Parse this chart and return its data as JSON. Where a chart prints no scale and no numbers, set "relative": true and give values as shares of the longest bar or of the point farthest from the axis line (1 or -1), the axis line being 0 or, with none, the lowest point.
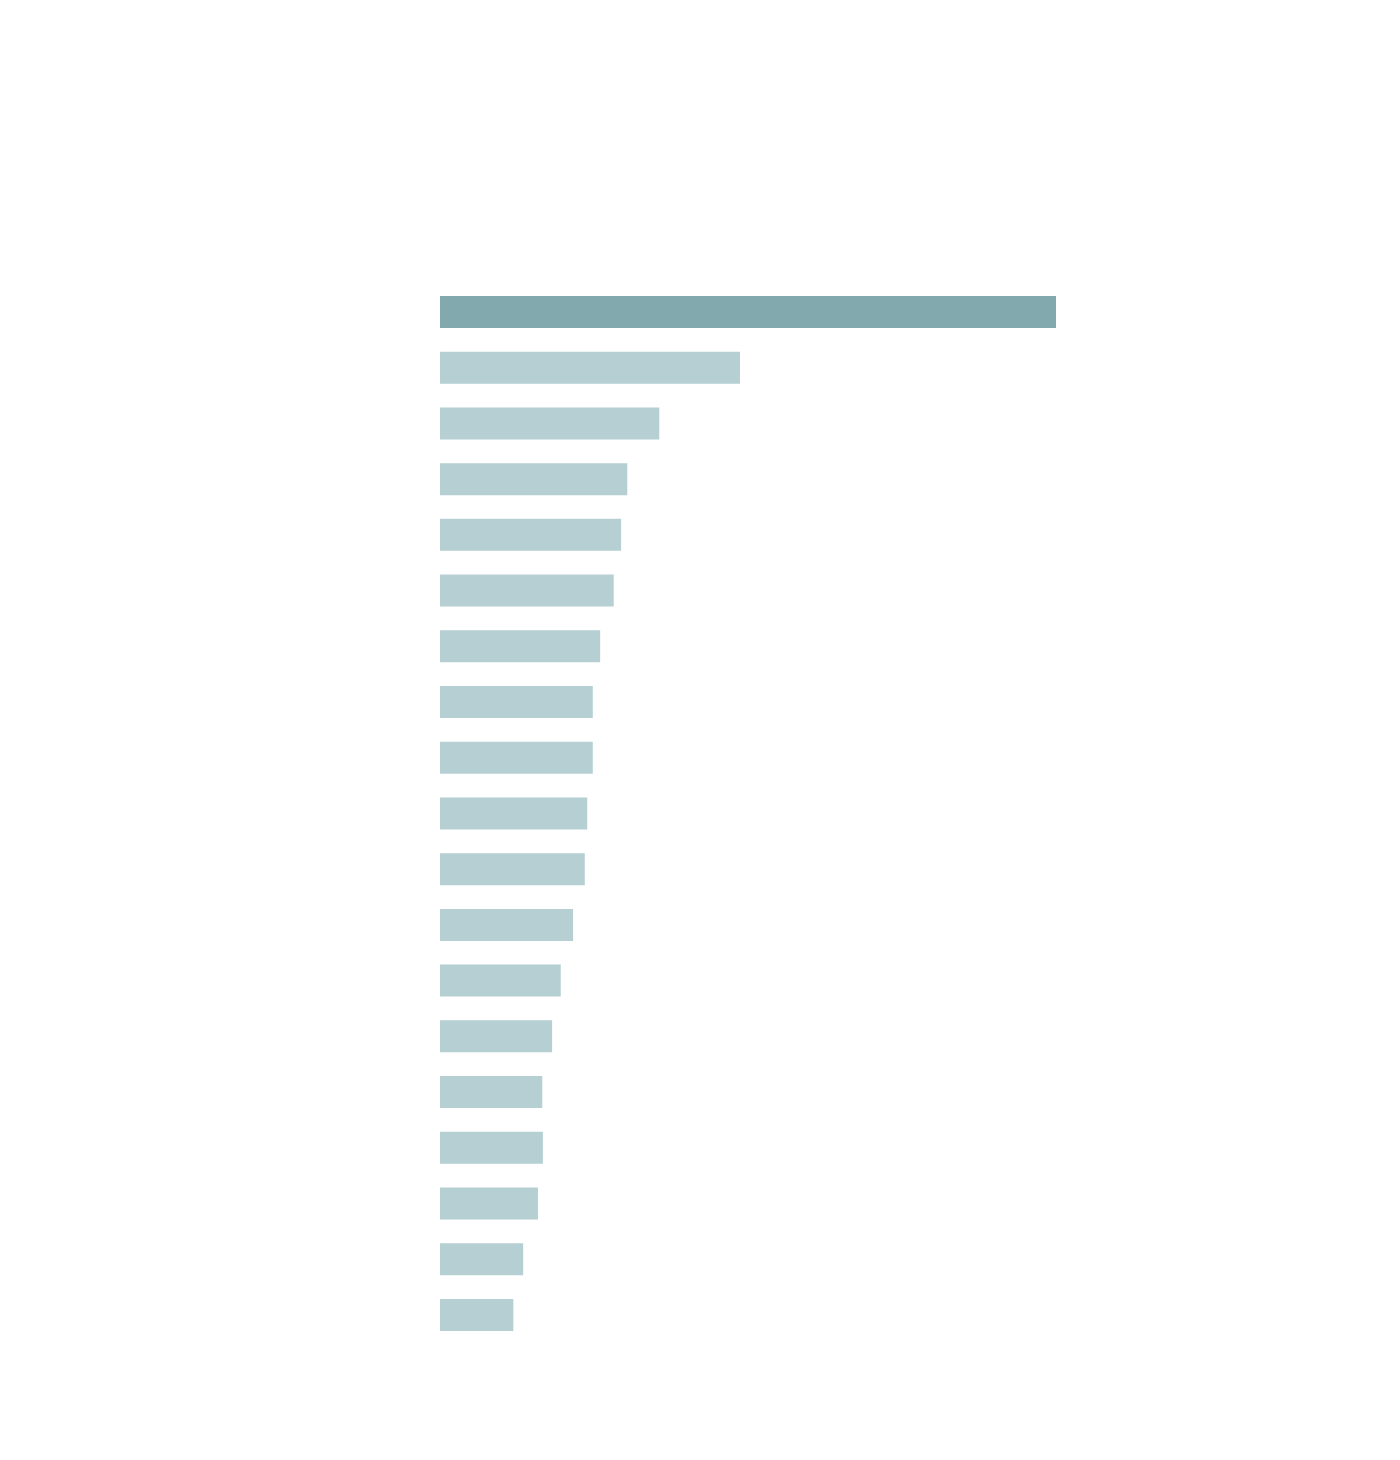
{
  "chart_data": {
    "type": "bar",
    "orientation": "horizontal",
    "relative": true,
    "categories": [
      null,
      null,
      null,
      null,
      null,
      null,
      null,
      null,
      null,
      null,
      null,
      null,
      null,
      null,
      null,
      null,
      null,
      null,
      null
    ],
    "values": [
      1,
      0.487,
      0.356,
      0.304,
      0.294,
      0.282,
      0.26,
      0.248,
      0.248,
      0.239,
      0.235,
      0.216,
      0.196,
      0.182,
      0.166,
      0.167,
      0.159,
      0.135,
      0.119
    ],
    "colors": [
      "#82a9ad",
      "#b5cfd2",
      "#b5cfd2",
      "#b5cfd2",
      "#b5cfd2",
      "#b5cfd2",
      "#b5cfd2",
      "#b5cfd2",
      "#b5cfd2",
      "#b5cfd2",
      "#b5cfd2",
      "#b5cfd2",
      "#b5cfd2",
      "#b5cfd2",
      "#b5cfd2",
      "#b5cfd2",
      "#b5cfd2",
      "#b5cfd2",
      "#b5cfd2"
    ]
  }
}
